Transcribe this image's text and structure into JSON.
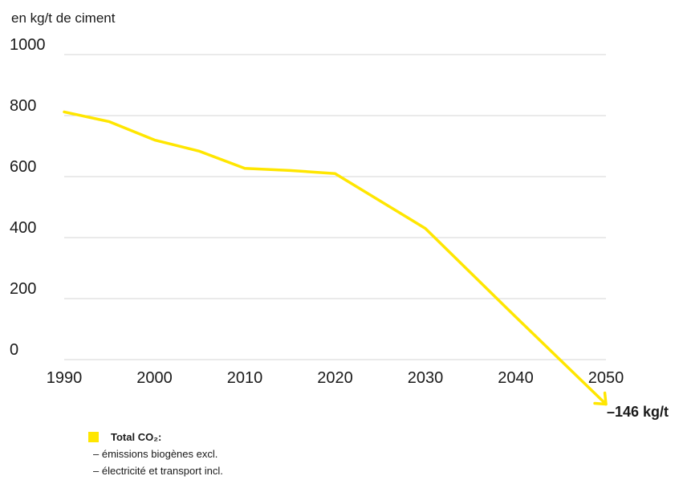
{
  "chart_data": {
    "type": "line",
    "ylabel": "en kg/t de ciment",
    "ylim": [
      0,
      1000
    ],
    "yticks": [
      0,
      200,
      400,
      600,
      800,
      1000
    ],
    "xlim": [
      1990,
      2050
    ],
    "xticks": [
      1990,
      2000,
      2010,
      2020,
      2030,
      2040,
      2050
    ],
    "grid": "horizontal",
    "series": [
      {
        "name": "Total CO₂:",
        "color": "#FFE600",
        "x": [
          1990,
          1995,
          2000,
          2005,
          2010,
          2015,
          2020,
          2030,
          2040,
          2050
        ],
        "y": [
          812,
          780,
          720,
          683,
          627,
          620,
          610,
          430,
          140,
          -146
        ]
      }
    ],
    "end_annotation": "–146 kg/t",
    "legend": {
      "title": "Total CO₂:",
      "lines": [
        "– émissions biogènes excl.",
        "– électricité et transport incl."
      ]
    }
  }
}
